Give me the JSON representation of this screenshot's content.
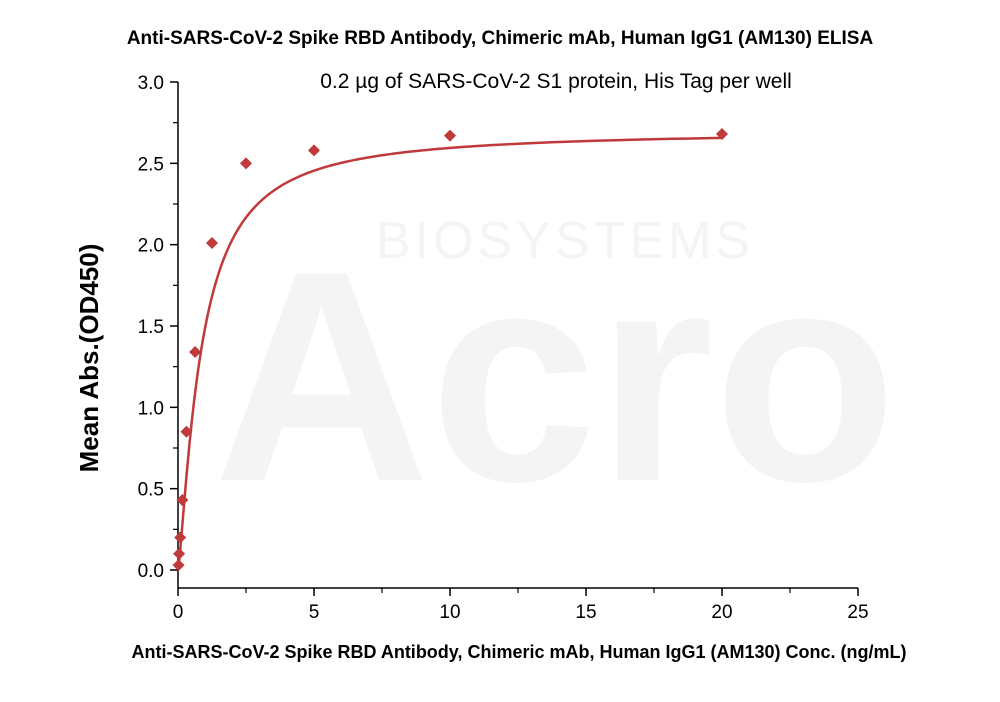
{
  "chart_data": {
    "type": "scatter",
    "title": "Anti-SARS-CoV-2 Spike RBD Antibody, Chimeric mAb, Human IgG1 (AM130) ELISA",
    "subtitle": "0.2 µg of SARS-CoV-2 S1 protein, His Tag per well",
    "xlabel": "Anti-SARS-CoV-2 Spike RBD Antibody, Chimeric mAb, Human IgG1 (AM130) Conc. (ng/mL)",
    "ylabel": "Mean Abs.(OD450)",
    "xlim": [
      0,
      25
    ],
    "ylim": [
      0,
      3.0
    ],
    "x_ticks": [
      0,
      5,
      10,
      15,
      20,
      25
    ],
    "y_ticks": [
      0.0,
      0.5,
      1.0,
      1.5,
      2.0,
      2.5,
      3.0
    ],
    "x_tick_labels": [
      "0",
      "5",
      "10",
      "15",
      "20",
      "25"
    ],
    "y_tick_labels": [
      "0.0",
      "0.5",
      "1.0",
      "1.5",
      "2.0",
      "2.5",
      "3.0"
    ],
    "grid": false,
    "marker": "diamond",
    "color": "#c0393b",
    "series": [
      {
        "x": [
          0.02,
          0.04,
          0.08,
          0.16,
          0.31,
          0.63,
          1.25,
          2.5,
          5,
          10,
          20
        ],
        "values": [
          0.03,
          0.1,
          0.2,
          0.43,
          0.85,
          1.34,
          2.01,
          2.5,
          2.58,
          2.67,
          2.68
        ]
      }
    ],
    "fit_curve": {
      "type": "4PL",
      "bottom": 0.0,
      "top": 2.7,
      "ec50": 0.85,
      "hill": 1.3
    }
  },
  "watermark": {
    "brand": "Acro",
    "sub": "BIOSYSTEMS"
  }
}
